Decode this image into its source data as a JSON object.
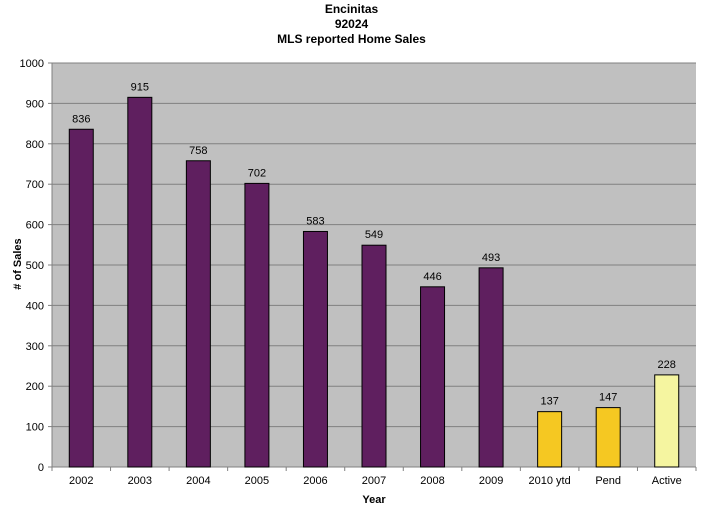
{
  "chart_data": {
    "type": "bar",
    "title": [
      "Encinitas",
      "92024",
      "MLS reported Home Sales"
    ],
    "xlabel": "Year",
    "ylabel": "# of Sales",
    "ylim": [
      0,
      1000
    ],
    "yticks": [
      0,
      100,
      200,
      300,
      400,
      500,
      600,
      700,
      800,
      900,
      1000
    ],
    "grid": true,
    "background_color": "#c0c0c0",
    "categories": [
      "2002",
      "2003",
      "2004",
      "2005",
      "2006",
      "2007",
      "2008",
      "2009",
      "2010 ytd",
      "Pend",
      "Active"
    ],
    "values": [
      836,
      915,
      758,
      702,
      583,
      549,
      446,
      493,
      137,
      147,
      228
    ],
    "colors": [
      "#5f1f5f",
      "#5f1f5f",
      "#5f1f5f",
      "#5f1f5f",
      "#5f1f5f",
      "#5f1f5f",
      "#5f1f5f",
      "#5f1f5f",
      "#f5c822",
      "#f5c822",
      "#f5f5a0"
    ],
    "data_labels": true
  }
}
